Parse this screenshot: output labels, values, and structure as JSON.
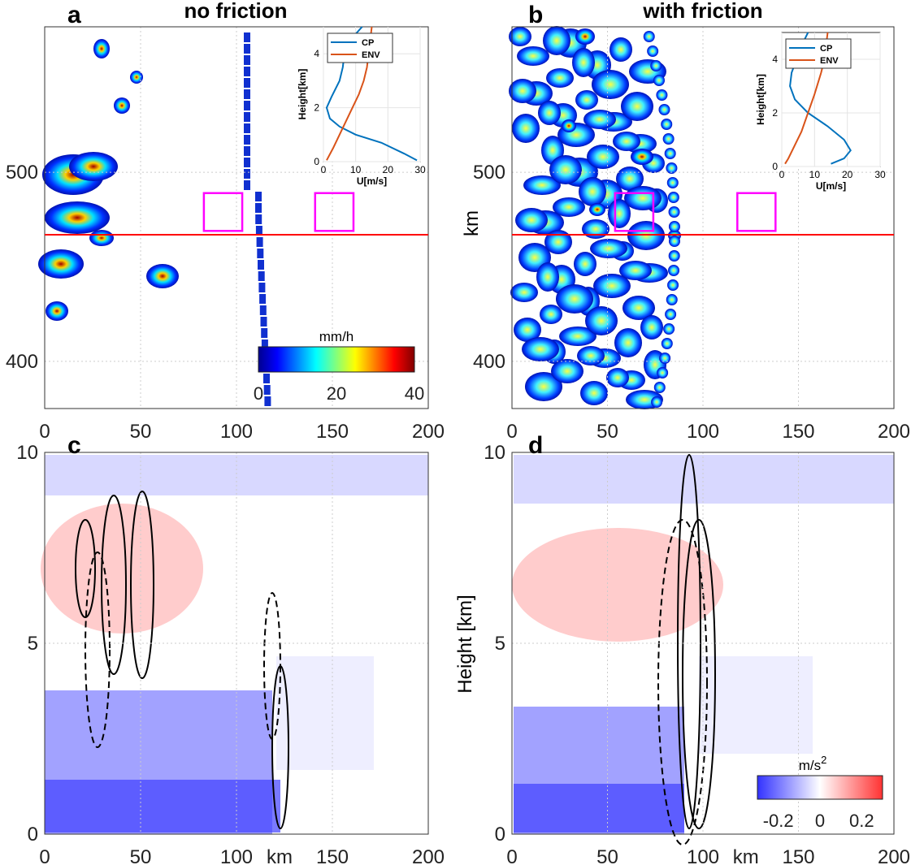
{
  "chart_data": [
    {
      "panel": "a",
      "type": "heatmap",
      "title": "no friction",
      "xlim": [
        0,
        200
      ],
      "ylim": [
        375,
        577
      ],
      "xticks": [
        0,
        50,
        100,
        150,
        200
      ],
      "yticks": [
        400,
        500
      ],
      "ylabel": "",
      "reference_line_y": 467,
      "boxes": [
        {
          "x": [
            83,
            103
          ],
          "y": [
            469,
            489
          ]
        },
        {
          "x": [
            141,
            161
          ],
          "y": [
            469,
            489
          ]
        }
      ],
      "colorbar": {
        "label": "mm/h",
        "range": [
          0,
          40
        ],
        "ticks": [
          0,
          20,
          40
        ],
        "colormap": "jet"
      },
      "inset": {
        "type": "line",
        "xlabel": "U[m/s]",
        "ylabel": "Height[km]",
        "xlim": [
          0,
          30
        ],
        "ylim": [
          0,
          5
        ],
        "xticks": [
          0,
          10,
          20,
          30
        ],
        "yticks": [
          0,
          2,
          4
        ],
        "series": [
          {
            "name": "CP",
            "color": "#0072BD",
            "points": [
              [
                29,
                0.05
              ],
              [
                25,
                0.3
              ],
              [
                18,
                0.7
              ],
              [
                10,
                1.0
              ],
              [
                5,
                1.3
              ],
              [
                2,
                1.6
              ],
              [
                1,
                2
              ],
              [
                2.5,
                2.4
              ],
              [
                5,
                3
              ],
              [
                6,
                3.5
              ],
              [
                6.5,
                4
              ],
              [
                9,
                4.6
              ],
              [
                12,
                5
              ]
            ]
          },
          {
            "name": "ENV",
            "color": "#D95319",
            "points": [
              [
                1,
                0.05
              ],
              [
                3,
                0.5
              ],
              [
                5,
                1
              ],
              [
                7,
                1.5
              ],
              [
                9,
                2
              ],
              [
                11,
                2.5
              ],
              [
                12.5,
                3
              ],
              [
                13.5,
                3.5
              ],
              [
                14,
                4
              ],
              [
                15,
                5
              ]
            ]
          }
        ]
      }
    },
    {
      "panel": "b",
      "type": "heatmap",
      "title": "with friction",
      "xlim": [
        0,
        200
      ],
      "ylim": [
        375,
        577
      ],
      "xticks": [
        0,
        50,
        100,
        150,
        200
      ],
      "yticks": [
        400,
        500
      ],
      "ylabel": "km",
      "reference_line_y": 467,
      "boxes": [
        {
          "x": [
            54,
            74
          ],
          "y": [
            469,
            489
          ]
        },
        {
          "x": [
            118,
            138
          ],
          "y": [
            469,
            489
          ]
        }
      ],
      "inset": {
        "type": "line",
        "xlabel": "U[m/s]",
        "ylabel": "Height[km]",
        "xlim": [
          0,
          30
        ],
        "ylim": [
          0,
          5
        ],
        "xticks": [
          0,
          10,
          20,
          30
        ],
        "yticks": [
          0,
          2,
          4
        ],
        "series": [
          {
            "name": "CP",
            "color": "#0072BD",
            "points": [
              [
                15,
                0.1
              ],
              [
                19,
                0.3
              ],
              [
                21,
                0.6
              ],
              [
                19,
                1
              ],
              [
                14,
                1.5
              ],
              [
                8,
                2
              ],
              [
                4,
                2.5
              ],
              [
                2.5,
                3
              ],
              [
                3,
                3.5
              ],
              [
                4.5,
                4
              ],
              [
                6,
                4.5
              ],
              [
                8,
                5
              ]
            ]
          },
          {
            "name": "ENV",
            "color": "#D95319",
            "points": [
              [
                1,
                0.1
              ],
              [
                2,
                0.3
              ],
              [
                4,
                0.8
              ],
              [
                6,
                1.3
              ],
              [
                8,
                2
              ],
              [
                10,
                2.7
              ],
              [
                12,
                3.5
              ],
              [
                13,
                4
              ],
              [
                14,
                5
              ]
            ]
          }
        ]
      }
    },
    {
      "panel": "c",
      "type": "heatmap",
      "xlim": [
        0,
        200
      ],
      "ylim": [
        0,
        10
      ],
      "xticks": [
        0,
        50,
        100,
        150,
        200
      ],
      "xticklabels": [
        "0",
        "50",
        "100",
        "km",
        "150",
        "200"
      ],
      "yticks": [
        0,
        5,
        10
      ],
      "ylabel": ""
    },
    {
      "panel": "d",
      "type": "heatmap",
      "xlim": [
        0,
        200
      ],
      "ylim": [
        0,
        10
      ],
      "xticks": [
        0,
        50,
        100,
        150,
        200
      ],
      "xticklabels": [
        "0",
        "50",
        "100",
        "km",
        "150",
        "200"
      ],
      "yticks": [
        0,
        5,
        10
      ],
      "ylabel": "Height [km]",
      "colorbar": {
        "label": "m/s",
        "label_sup": "2",
        "range": [
          -0.3,
          0.3
        ],
        "ticks": [
          -0.2,
          0,
          0.2
        ],
        "colormap": "blue-white-red"
      }
    }
  ],
  "labels": {
    "a": "a",
    "b": "b",
    "c": "c",
    "d": "d",
    "title_a": "no friction",
    "title_b": "with friction",
    "ylabel_b": "km",
    "ylabel_d": "Height [km]",
    "cbar_a": "mm/h",
    "cbar_d": "m/s",
    "cbar_d_sup": "2",
    "km": "km"
  }
}
